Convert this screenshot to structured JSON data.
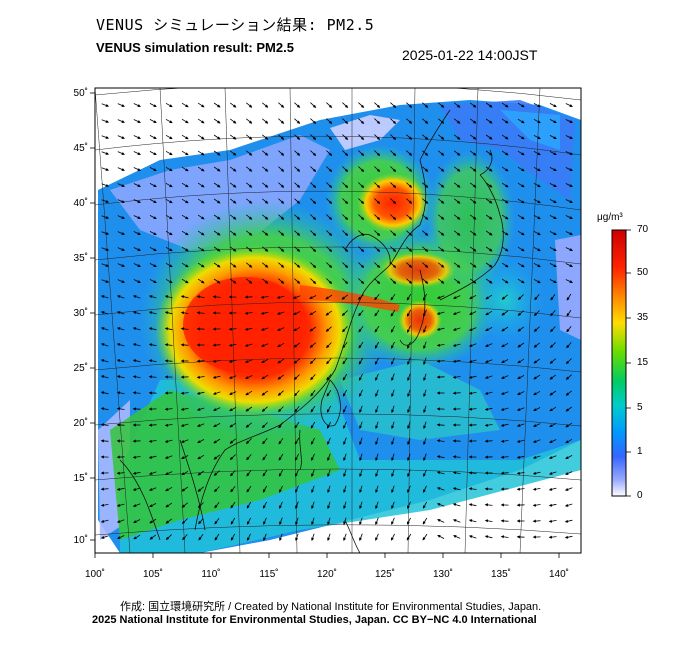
{
  "title_ja": "VENUS シミュレーション結果: PM2.5",
  "title_en": "VENUS simulation result: PM2.5",
  "datetime": "2025-01-22 14:00JST",
  "map": {
    "lat_labels": [
      "50˚",
      "45˚",
      "40˚",
      "35˚",
      "30˚",
      "25˚",
      "20˚",
      "15˚",
      "10˚"
    ],
    "lon_labels": [
      "100˚",
      "105˚",
      "110˚",
      "115˚",
      "120˚",
      "125˚",
      "130˚",
      "135˚",
      "140˚"
    ],
    "lat_min": 9,
    "lat_max": 51,
    "lon_min": 100,
    "lon_max": 141
  },
  "colorbar": {
    "unit": "μg/m³",
    "ticks": [
      "70",
      "50",
      "35",
      "15",
      "5",
      "1",
      "0"
    ],
    "colors": [
      "#cc0000",
      "#ff2200",
      "#ff8800",
      "#ffdd00",
      "#66dd00",
      "#00cc66",
      "#00cccc",
      "#0099ff",
      "#3366ff",
      "#99aaff",
      "#ffffff"
    ]
  },
  "credit": "作成: 国立環境研究所 / Created by National Institute for Environmental Studies, Japan.",
  "license": "2025 National Institute for Environmental Studies, Japan. CC BY−NC 4.0 International"
}
